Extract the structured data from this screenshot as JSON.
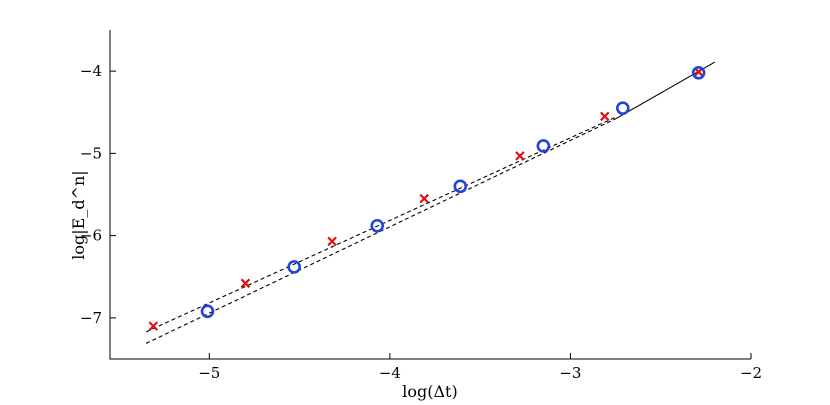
{
  "chart_data": {
    "type": "scatter",
    "title": "",
    "xlabel": "log(Δt)",
    "ylabel": "log|E_d^n|",
    "xlim": [
      -5.55,
      -2.0
    ],
    "ylim": [
      -7.5,
      -3.5
    ],
    "x_ticks": [
      -5,
      -4,
      -3,
      -2
    ],
    "x_tick_labels": [
      "−5",
      "−4",
      "−3",
      "−2"
    ],
    "y_ticks": [
      -7,
      -6,
      -5,
      -4
    ],
    "y_tick_labels": [
      "−7",
      "−6",
      "−5",
      "−4"
    ],
    "grid": false,
    "legend": "none",
    "series": [
      {
        "marker": "x",
        "color": "#dd1111",
        "x": [
          -5.31,
          -4.8,
          -4.32,
          -3.81,
          -3.28,
          -2.81,
          -2.29
        ],
        "y": [
          -7.1,
          -6.58,
          -6.07,
          -5.55,
          -5.03,
          -4.55,
          -4.01
        ]
      },
      {
        "marker": "o",
        "color": "#2244dd",
        "x": [
          -5.01,
          -4.53,
          -4.07,
          -3.61,
          -3.15,
          -2.71,
          -2.29
        ],
        "y": [
          -6.92,
          -6.38,
          -5.88,
          -5.4,
          -4.91,
          -4.45,
          -4.02
        ]
      }
    ],
    "reference_lines": [
      {
        "style": "dashed",
        "x": [
          -5.35,
          -2.75
        ],
        "y": [
          -7.17,
          -4.56
        ]
      },
      {
        "style": "dashed",
        "x": [
          -5.35,
          -2.75
        ],
        "y": [
          -7.31,
          -4.58
        ]
      },
      {
        "style": "solid",
        "x": [
          -2.75,
          -2.2
        ],
        "y": [
          -4.58,
          -3.89
        ]
      }
    ]
  }
}
